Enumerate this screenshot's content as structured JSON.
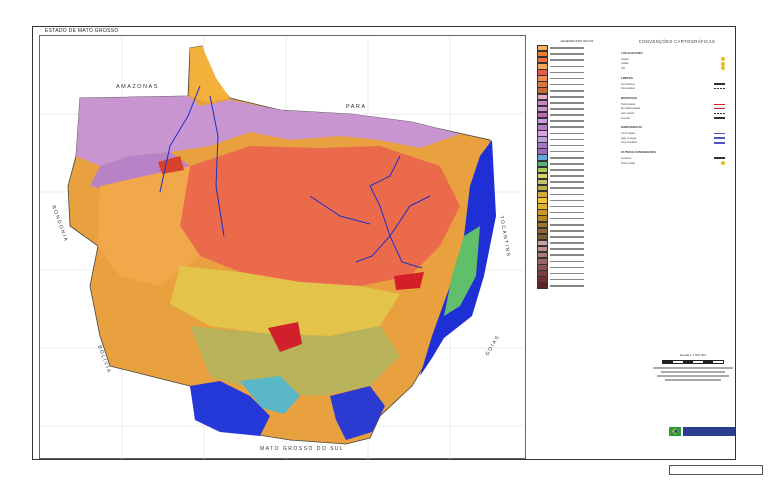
{
  "sheet": {
    "title": "ESTADO DE MATO GROSSO"
  },
  "map": {
    "labels": {
      "amazonas": "AMAZONAS",
      "para": "PARA",
      "rondonia": "RONDONIA",
      "bolivia": "BOLIVIA",
      "tocantins": "TOCANTINS",
      "goias": "GOIAS",
      "mato_grosso_do_sul": "MATO GROSSO DO SUL"
    }
  },
  "legend": {
    "title": "LEGENDA DOS SOLOS",
    "colors": [
      "#f4b35a",
      "#e87e2f",
      "#ef6f3c",
      "#f6a65b",
      "#e85b45",
      "#f08952",
      "#d8793a",
      "#c66a3c",
      "#e7a7c8",
      "#c985c0",
      "#ce92d0",
      "#b86db2",
      "#c49edc",
      "#b37ac6",
      "#d6a4d6",
      "#c0a0d8",
      "#a37ac7",
      "#9d6cbc",
      "#5ea9d9",
      "#59b27a",
      "#a9c95d",
      "#d6d36a",
      "#c8c26c",
      "#b5b04a",
      "#d7a741",
      "#f0c836",
      "#e5b12c",
      "#d19426",
      "#b8862a",
      "#a1772b",
      "#8a6a32",
      "#7e5e2c",
      "#c8a3a3",
      "#b88e8e",
      "#a97979",
      "#9c6565",
      "#8b5151",
      "#7d3f3f",
      "#6f3030",
      "#5f2525"
    ]
  },
  "conventions": {
    "title": "CONVENÇÕES CARTOGRÁFICAS",
    "sections": [
      {
        "heading": "LOCALIDADES",
        "rows": [
          {
            "label": "Capital",
            "symbol": "dot"
          },
          {
            "label": "Cidade",
            "symbol": "dot"
          },
          {
            "label": "Vila",
            "symbol": "dot"
          }
        ]
      },
      {
        "heading": "LIMITES",
        "rows": [
          {
            "label": "Internacional",
            "symbol": "line"
          },
          {
            "label": "Interestadual",
            "symbol": "dash"
          }
        ]
      },
      {
        "heading": "RODOVIAS",
        "rows": [
          {
            "label": "Pavimentada",
            "symbol": "red"
          },
          {
            "label": "Em pavimentação",
            "symbol": "red"
          },
          {
            "label": "Leito natural",
            "symbol": "dash"
          },
          {
            "label": "Ferrovia",
            "symbol": "line"
          }
        ]
      },
      {
        "heading": "HIDROGRAFIA",
        "rows": [
          {
            "label": "Curso d'água",
            "symbol": "blue"
          },
          {
            "label": "Lago ou lagoa",
            "symbol": "blue"
          },
          {
            "label": "Área inundável",
            "symbol": "blue"
          }
        ]
      },
      {
        "heading": "OUTRAS CONVENÇÕES",
        "rows": [
          {
            "label": "Aeroporto",
            "symbol": "line"
          },
          {
            "label": "Ponto cotado",
            "symbol": "dot"
          }
        ]
      }
    ]
  },
  "scale": {
    "label": "Escala 1:1 500 000"
  }
}
